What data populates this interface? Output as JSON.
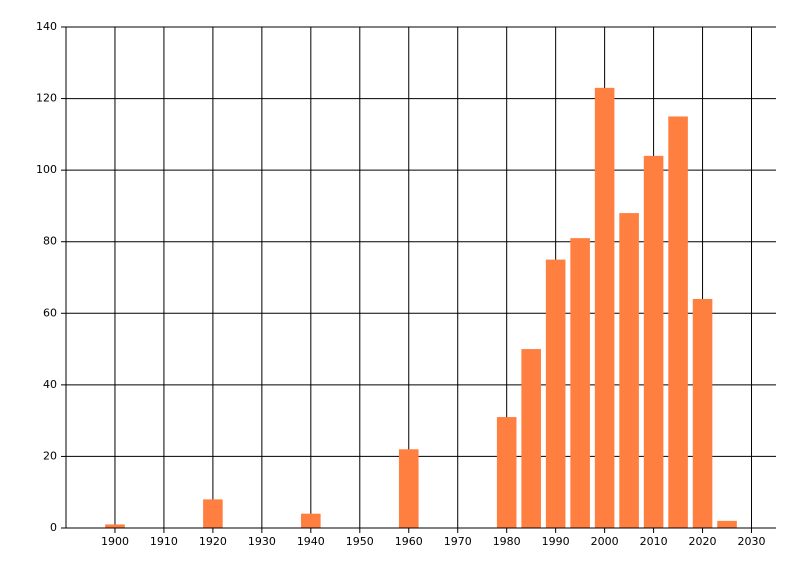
{
  "chart_data": {
    "type": "bar",
    "x": [
      1900,
      1920,
      1940,
      1960,
      1980,
      1985,
      1990,
      1995,
      2000,
      2005,
      2010,
      2015,
      2020,
      2025
    ],
    "values": [
      1,
      8,
      4,
      22,
      31,
      50,
      75,
      81,
      123,
      88,
      104,
      115,
      64,
      2
    ],
    "color": "#ff7f40",
    "xlim": [
      1890,
      2035
    ],
    "xticks": [
      1900,
      1910,
      1920,
      1930,
      1940,
      1950,
      1960,
      1970,
      1980,
      1990,
      2000,
      2010,
      2020,
      2030
    ],
    "ylim": [
      0,
      140
    ],
    "yticks": [
      0,
      20,
      40,
      60,
      80,
      100,
      120,
      140
    ],
    "grid": true
  }
}
